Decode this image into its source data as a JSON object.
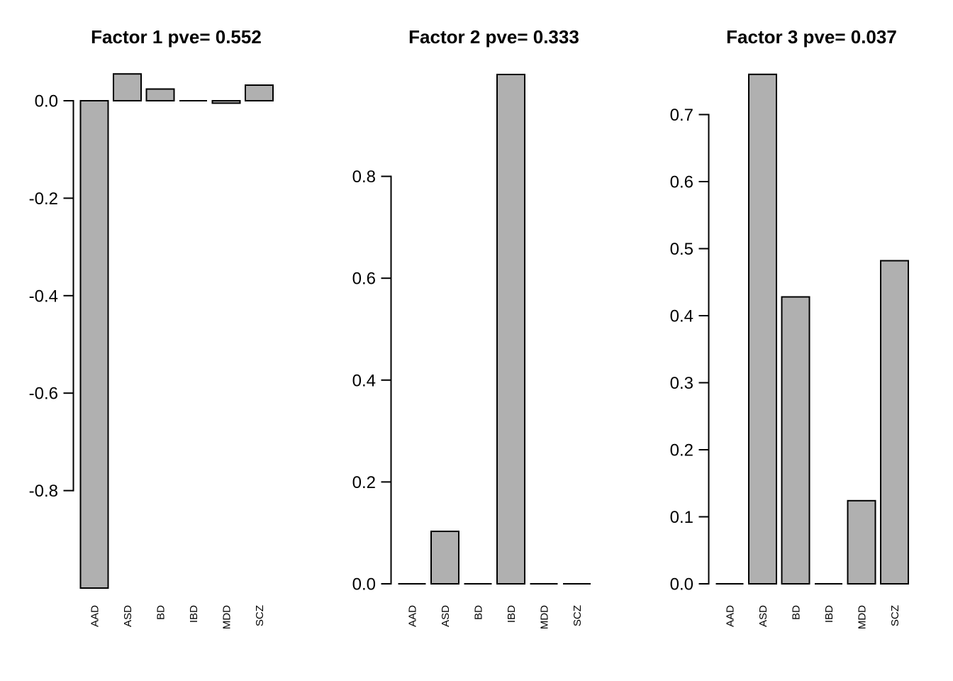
{
  "figure": {
    "background": "#ffffff",
    "bar_fill": "#b0b0b0",
    "bar_stroke": "#000000",
    "axis_color": "#000000",
    "text_color": "#000000"
  },
  "chart_data": [
    {
      "type": "bar",
      "title": "Factor 1 pve= 0.552",
      "categories": [
        "AAD",
        "ASD",
        "BD",
        "IBD",
        "MDD",
        "SCZ"
      ],
      "values": [
        -1.0,
        0.055,
        0.024,
        0.0,
        -0.005,
        0.032
      ],
      "xlabel": "",
      "ylabel": "",
      "ylim": [
        -1.0,
        0.055
      ],
      "yticks": [
        0.0,
        -0.2,
        -0.4,
        -0.6,
        -0.8
      ],
      "ytick_labels": [
        "0.0",
        "-0.2",
        "-0.4",
        "-0.6",
        "-0.8"
      ],
      "grid": false,
      "legend": false
    },
    {
      "type": "bar",
      "title": "Factor 2 pve= 0.333",
      "categories": [
        "AAD",
        "ASD",
        "BD",
        "IBD",
        "MDD",
        "SCZ"
      ],
      "values": [
        0.0,
        0.103,
        0.0,
        1.0,
        0.0,
        0.0
      ],
      "xlabel": "",
      "ylabel": "",
      "ylim": [
        0.0,
        1.0
      ],
      "yticks": [
        0.0,
        0.2,
        0.4,
        0.6,
        0.8
      ],
      "ytick_labels": [
        "0.0",
        "0.2",
        "0.4",
        "0.6",
        "0.8"
      ],
      "grid": false,
      "legend": false
    },
    {
      "type": "bar",
      "title": "Factor 3 pve= 0.037",
      "categories": [
        "AAD",
        "ASD",
        "BD",
        "IBD",
        "MDD",
        "SCZ"
      ],
      "values": [
        0.0,
        0.76,
        0.428,
        0.0,
        0.124,
        0.482
      ],
      "xlabel": "",
      "ylabel": "",
      "ylim": [
        0.0,
        0.76
      ],
      "yticks": [
        0.0,
        0.1,
        0.2,
        0.3,
        0.4,
        0.5,
        0.6,
        0.7
      ],
      "ytick_labels": [
        "0.0",
        "0.1",
        "0.2",
        "0.3",
        "0.4",
        "0.5",
        "0.6",
        "0.7"
      ],
      "grid": false,
      "legend": false
    }
  ]
}
